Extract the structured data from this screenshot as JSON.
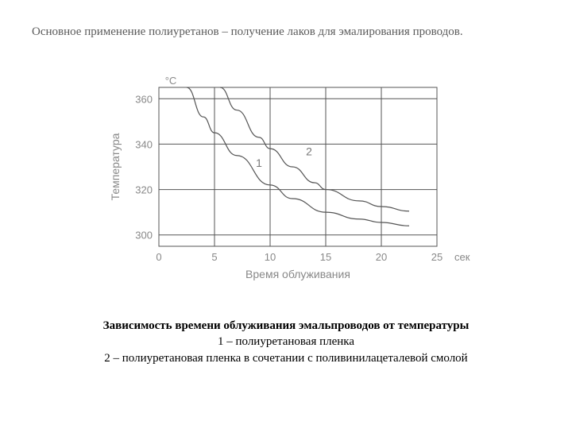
{
  "top_text": "Основное применение полиуретанов – получение лаков для эмалирования проводов.",
  "chart": {
    "type": "line",
    "y_unit": "°C",
    "y_label": "Температура",
    "x_label": "Время облуживания",
    "x_unit": "сек",
    "x_ticks": [
      0,
      5,
      10,
      15,
      20,
      25
    ],
    "y_ticks": [
      300,
      320,
      340,
      360
    ],
    "xlim": [
      0,
      25
    ],
    "ylim": [
      295,
      365
    ],
    "grid_color": "#555555",
    "background_color": "#ffffff",
    "curve_color": "#555555",
    "tick_color": "#888888",
    "label_fontsize": 14,
    "tick_fontsize": 13,
    "series": [
      {
        "name": "1",
        "points": [
          [
            2.5,
            365
          ],
          [
            4,
            352
          ],
          [
            5,
            345
          ],
          [
            7,
            335
          ],
          [
            10,
            322
          ],
          [
            12,
            316
          ],
          [
            15,
            310
          ],
          [
            18,
            307
          ],
          [
            20,
            305.5
          ],
          [
            22.5,
            304
          ]
        ]
      },
      {
        "name": "2",
        "points": [
          [
            5.5,
            365
          ],
          [
            7,
            355
          ],
          [
            9,
            343
          ],
          [
            10,
            338
          ],
          [
            12,
            330
          ],
          [
            14,
            323
          ],
          [
            15,
            320
          ],
          [
            18,
            315
          ],
          [
            20,
            312.5
          ],
          [
            22.5,
            310.5
          ]
        ]
      }
    ],
    "series_label_positions": {
      "1": [
        9,
        330
      ],
      "2": [
        13.5,
        335
      ]
    }
  },
  "caption": {
    "title": "Зависимость времени облуживания эмальпроводов от температуры",
    "line1": "1 – полиуретановая пленка",
    "line2": "2 – полиуретановая пленка в сочетании с поливинилацеталевой смолой"
  }
}
